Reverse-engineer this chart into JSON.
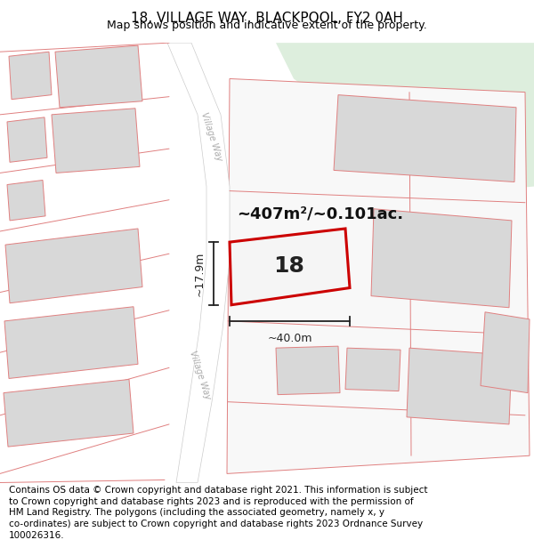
{
  "title": "18, VILLAGE WAY, BLACKPOOL, FY2 0AH",
  "subtitle": "Map shows position and indicative extent of the property.",
  "footer": "Contains OS data © Crown copyright and database right 2021. This information is subject to Crown copyright and database rights 2023 and is reproduced with the permission of HM Land Registry. The polygons (including the associated geometry, namely x, y co-ordinates) are subject to Crown copyright and database rights 2023 Ordnance Survey 100026316.",
  "area_label": "~407m²/~0.101ac.",
  "width_label": "~40.0m",
  "height_label": "~17.9m",
  "property_number": "18",
  "bg_color": "#ffffff",
  "map_bg": "#f2f2f2",
  "green_color": "#ddeedd",
  "road_color": "#ffffff",
  "parcel_color": "#f8f8f8",
  "building_fill": "#d8d8d8",
  "boundary_color": "#e08080",
  "property_stroke": "#cc0000",
  "dim_color": "#222222",
  "label_color": "#111111",
  "road_label_color": "#aaaaaa",
  "title_fontsize": 11,
  "subtitle_fontsize": 9,
  "footer_fontsize": 7.5,
  "area_fontsize": 13,
  "number_fontsize": 18,
  "dim_fontsize": 9,
  "road_fontsize": 7
}
